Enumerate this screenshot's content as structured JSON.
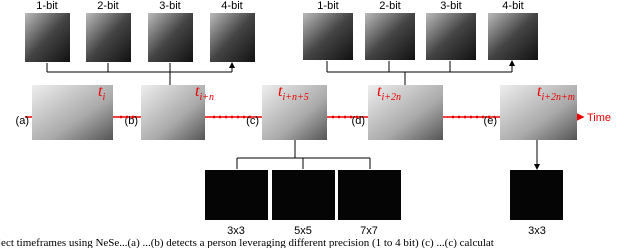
{
  "left_precision": {
    "labels": [
      "1-bit",
      "2-bit",
      "3-bit",
      "4-bit"
    ]
  },
  "right_precision": {
    "labels": [
      "1-bit",
      "2-bit",
      "3-bit",
      "4-bit"
    ]
  },
  "timeframes": [
    {
      "panel": "(a)",
      "t": "t",
      "sub": "i"
    },
    {
      "panel": "(b)",
      "t": "t",
      "sub": "i+n"
    },
    {
      "panel": "(c)",
      "t": "t",
      "sub": "i+n+5"
    },
    {
      "panel": "(d)",
      "t": "t",
      "sub": "i+2n"
    },
    {
      "panel": "(e)",
      "t": "t",
      "sub": "i+2n+m"
    }
  ],
  "axis_label": "Time",
  "kernels_c": [
    "3x3",
    "5x5",
    "7x7"
  ],
  "kernels_e": [
    "3x3"
  ],
  "caption": "ject timeframes using NeSe...(a) ...(b) detects a person leveraging different precision (1 to 4 bit) (c) ...(c) calculat"
}
